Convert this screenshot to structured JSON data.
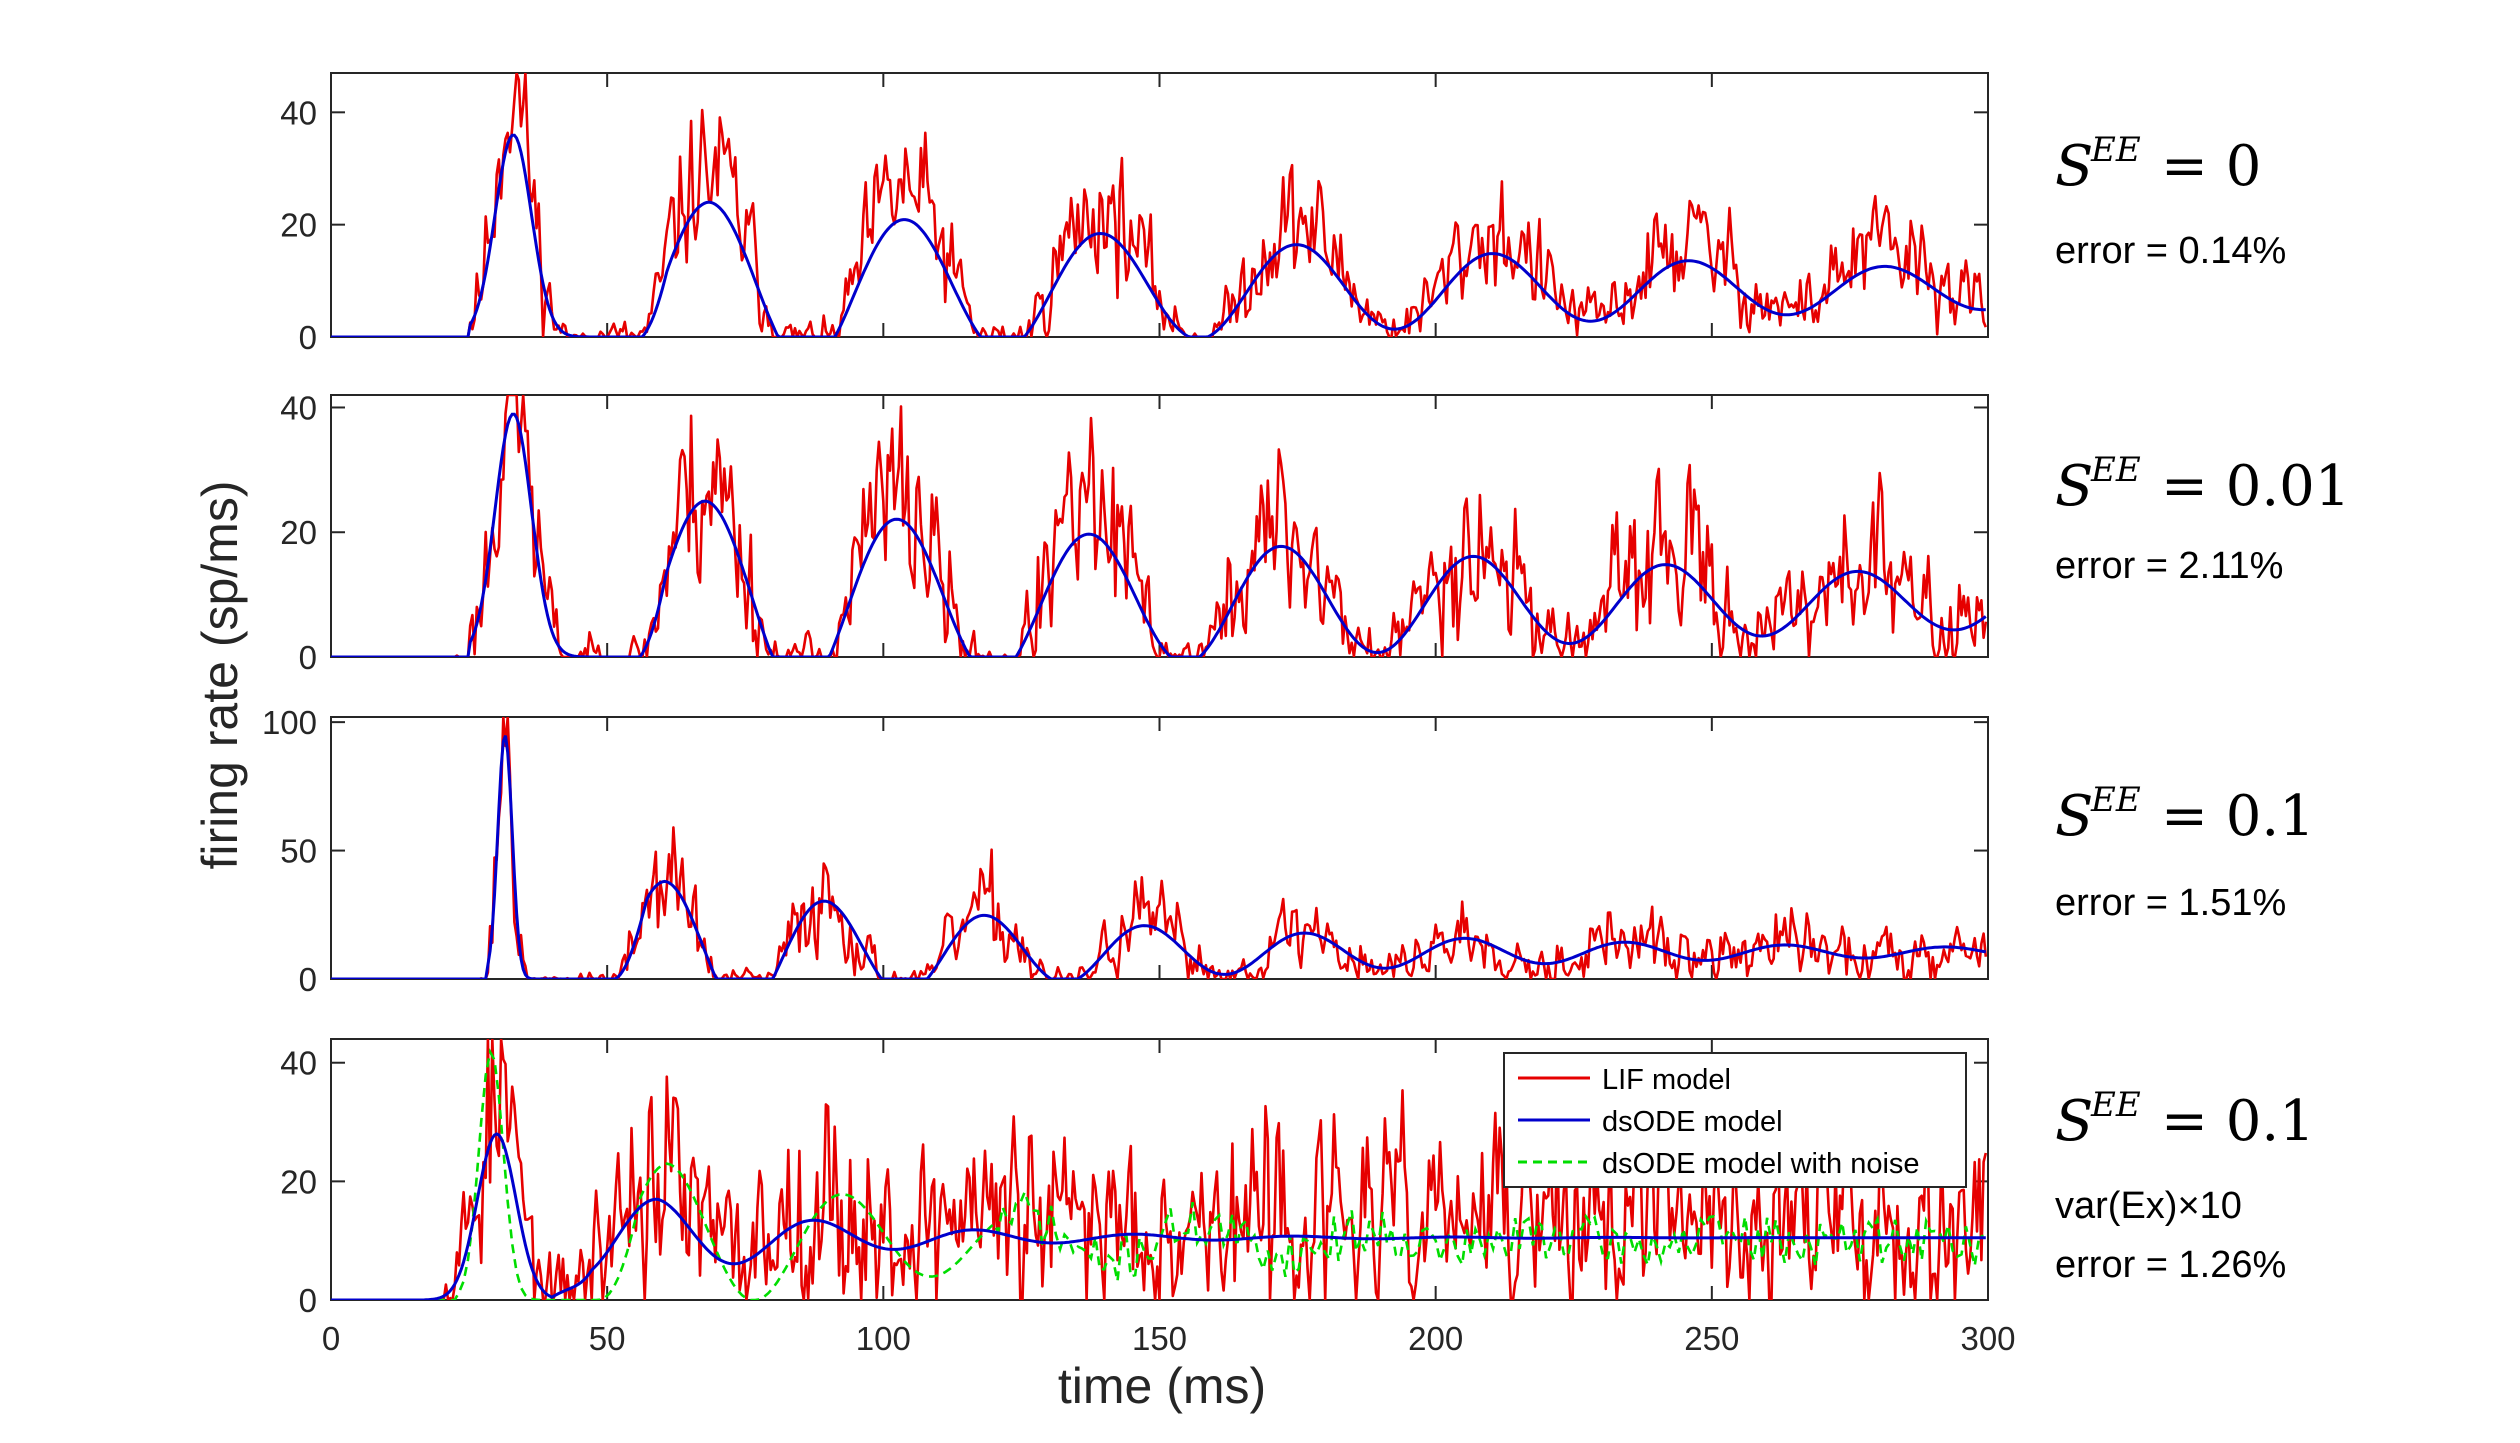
{
  "chart_data": {
    "type": "line",
    "xlabel": "time (ms)",
    "ylabel": "firing rate (sp/ms)",
    "xlim": [
      0,
      300
    ],
    "xticks": [
      "0",
      "50",
      "100",
      "150",
      "200",
      "250",
      "300"
    ],
    "colors": {
      "lif": "#e60000",
      "dsode": "#0000cc",
      "noise": "#00dd00",
      "axis": "#262626"
    },
    "legend": {
      "placement": "inside-top-right-of-bottom-panel",
      "entries": [
        "LIF model",
        "dsODE model",
        "dsODE model with noise"
      ]
    },
    "panels": [
      {
        "ylim": [
          0,
          47
        ],
        "yticks": [
          0,
          20,
          40
        ],
        "ytick_labels": [
          "0",
          "20",
          "40"
        ],
        "param_symbol": "S",
        "param_sup": "EE",
        "param_eq": "= 0",
        "notes": [
          "error = 0.14%"
        ],
        "dsode": {
          "first_peak_t": 33,
          "first_peak_amp": 36,
          "onset_t": 25,
          "first_width": 3.3,
          "period": 35.5,
          "damping": 0.8,
          "second_amp": 24,
          "baseline": 8.5,
          "start_t": 52
        },
        "lif": {
          "noise": 4.5,
          "peak_boost": 1.25,
          "seed": 11
        }
      },
      {
        "ylim": [
          0,
          42
        ],
        "yticks": [
          0,
          20,
          40
        ],
        "ytick_labels": [
          "0",
          "20",
          "40"
        ],
        "param_symbol": "S",
        "param_sup": "EE",
        "param_eq": "= 0.01",
        "notes": [
          "error = 2.11%"
        ],
        "dsode": {
          "first_peak_t": 33,
          "first_peak_amp": 39,
          "onset_t": 25,
          "first_width": 3.3,
          "period": 34.8,
          "damping": 0.82,
          "second_amp": 25,
          "baseline": 8.8,
          "start_t": 52
        },
        "lif": {
          "noise": 5.5,
          "peak_boost": 1.15,
          "seed": 23
        }
      },
      {
        "ylim": [
          0,
          102
        ],
        "yticks": [
          0,
          50,
          100
        ],
        "ytick_labels": [
          "0",
          "50",
          "100"
        ],
        "param_symbol": "S",
        "param_sup": "EE",
        "param_eq": "= 0.1",
        "notes": [
          "error = 1.51%"
        ],
        "dsode": {
          "first_peak_t": 31.5,
          "first_peak_amp": 95,
          "onset_t": 28,
          "first_width": 1.3,
          "period": 29,
          "damping": 0.72,
          "second_amp": 38,
          "baseline": 10.5,
          "start_t": 50
        },
        "lif": {
          "noise": 6,
          "peak_boost": 1.05,
          "seed": 37
        }
      },
      {
        "ylim": [
          0,
          44
        ],
        "yticks": [
          0,
          20,
          40
        ],
        "ytick_labels": [
          "0",
          "20",
          "40"
        ],
        "param_symbol": "S",
        "param_sup": "EE",
        "param_eq": "= 0.1",
        "notes": [
          "var(Ex)×10",
          "error = 1.26%"
        ],
        "dsode": {
          "first_peak_t": 30,
          "first_peak_amp": 28,
          "onset_t": 17,
          "first_width": 3.5,
          "period": 29,
          "damping": 0.45,
          "second_amp": 17,
          "baseline": 10.5,
          "start_t": 40
        },
        "lif": {
          "noise": 8,
          "peak_boost": 1.3,
          "seed": 53
        },
        "noise_model": {
          "first_peak_t": 29,
          "first_peak_amp": 42,
          "period": 32,
          "damping": 0.6,
          "second_amp": 23,
          "baseline": 10,
          "seed": 71
        }
      }
    ]
  }
}
